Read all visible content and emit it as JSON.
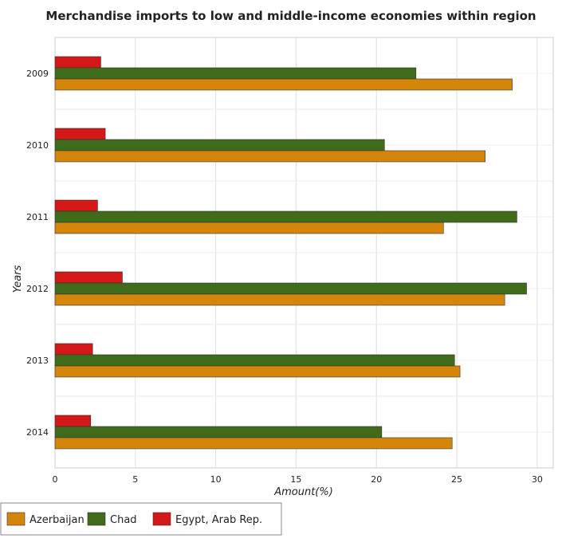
{
  "chart_data": {
    "type": "bar",
    "orientation": "horizontal",
    "title": "Merchandise imports to low and middle-income economies within region",
    "xlabel": "Amount(%)",
    "ylabel": "Years",
    "categories": [
      "2009",
      "2010",
      "2011",
      "2012",
      "2013",
      "2014"
    ],
    "xlim": [
      0,
      31
    ],
    "xticks": [
      0,
      5,
      10,
      15,
      20,
      25,
      30
    ],
    "grid": true,
    "legend_position": "bottom-left",
    "series": [
      {
        "name": "Azerbaijan",
        "color": "#d4860b",
        "values": [
          28.45,
          26.77,
          24.17,
          27.98,
          25.2,
          24.71
        ]
      },
      {
        "name": "Chad",
        "color": "#3f6b1a",
        "values": [
          22.46,
          20.5,
          28.74,
          29.34,
          24.86,
          20.33
        ]
      },
      {
        "name": "Egypt, Arab Rep.",
        "color": "#d41818",
        "values": [
          2.85,
          3.13,
          2.65,
          4.19,
          2.34,
          2.22
        ]
      }
    ]
  }
}
